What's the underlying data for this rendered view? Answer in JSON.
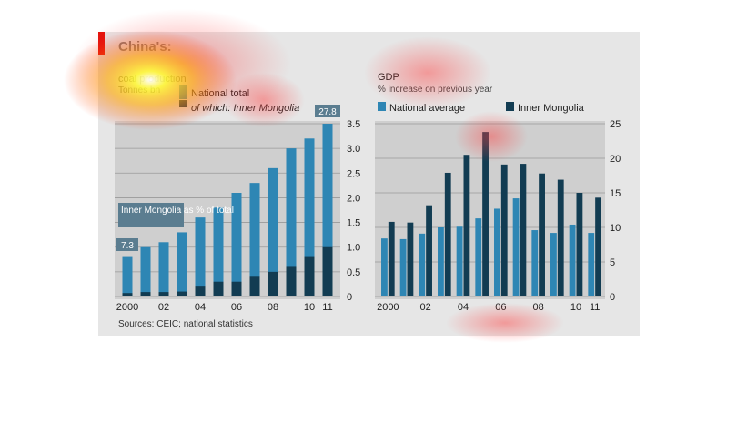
{
  "figure": {
    "title": "China's:",
    "source": "Sources: CEIC; national statistics",
    "colors": {
      "light": "#2e86b4",
      "dark": "#123c52",
      "panel": "#cfcfcf",
      "grid": "#9a9a9a",
      "label_box": "#5b7d90"
    }
  },
  "chart_data": [
    {
      "type": "bar",
      "title": "coal production",
      "subtitle": "Tonnes bn",
      "legend": [
        "National total",
        "of which: Inner Mongolia"
      ],
      "callout": "Inner Mongolia as % of total",
      "callout_values": {
        "start": "7.3",
        "end": "27.8"
      },
      "categories": [
        "2000",
        "01",
        "02",
        "03",
        "04",
        "05",
        "06",
        "07",
        "08",
        "09",
        "10",
        "11"
      ],
      "x_tick_labels": [
        "2000",
        "",
        "02",
        "",
        "04",
        "",
        "06",
        "",
        "08",
        "",
        "10",
        "11"
      ],
      "series": [
        {
          "name": "National total",
          "values": [
            0.8,
            1.0,
            1.1,
            1.3,
            1.6,
            1.8,
            2.1,
            2.3,
            2.6,
            3.0,
            3.2,
            3.5
          ]
        },
        {
          "name": "of which: Inner Mongolia",
          "values": [
            0.07,
            0.09,
            0.09,
            0.1,
            0.2,
            0.3,
            0.3,
            0.4,
            0.5,
            0.6,
            0.8,
            1.0
          ]
        }
      ],
      "ylim": [
        0,
        3.5
      ],
      "yticks": [
        0,
        0.5,
        1.0,
        1.5,
        2.0,
        2.5,
        3.0,
        3.5
      ],
      "ytick_labels": [
        "0",
        "0.5",
        "1.0",
        "1.5",
        "2.0",
        "2.5",
        "3.0",
        "3.5"
      ]
    },
    {
      "type": "bar",
      "title": "GDP",
      "subtitle": "% increase on previous year",
      "categories": [
        "2000",
        "01",
        "02",
        "03",
        "04",
        "05",
        "06",
        "07",
        "08",
        "09",
        "10",
        "11"
      ],
      "x_tick_labels": [
        "2000",
        "",
        "02",
        "",
        "04",
        "",
        "06",
        "",
        "08",
        "",
        "10",
        "11"
      ],
      "series": [
        {
          "name": "National average",
          "values": [
            8.4,
            8.3,
            9.1,
            10.0,
            10.1,
            11.3,
            12.7,
            14.2,
            9.6,
            9.2,
            10.4,
            9.2
          ]
        },
        {
          "name": "Inner Mongolia",
          "values": [
            10.8,
            10.7,
            13.2,
            17.9,
            20.5,
            23.8,
            19.1,
            19.2,
            17.8,
            16.9,
            15.0,
            14.3
          ]
        }
      ],
      "ylim": [
        0,
        25
      ],
      "yticks": [
        0,
        5,
        10,
        15,
        20,
        25
      ]
    }
  ]
}
